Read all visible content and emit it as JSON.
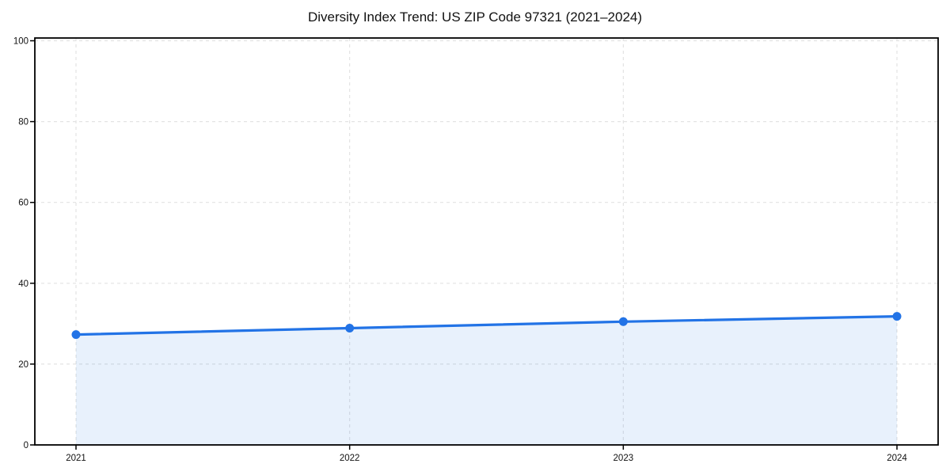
{
  "figure": {
    "background": "#ffffff"
  },
  "chart_data": {
    "type": "line",
    "title": "Diversity Index Trend: US ZIP Code 97321 (2021–2024)",
    "x": [
      2021,
      2022,
      2023,
      2024
    ],
    "xtick_labels": [
      "2021",
      "2022",
      "2023",
      "2024"
    ],
    "series": [
      {
        "name": "Diversity Index",
        "values": [
          27.3,
          28.9,
          30.5,
          31.8
        ]
      }
    ],
    "xlabel": "",
    "ylabel": "",
    "ylim": [
      0,
      100
    ],
    "yticks": [
      0,
      20,
      40,
      60,
      80,
      100
    ],
    "grid": true,
    "grid_style": "dashed",
    "legend_position": "none",
    "area_fill": true,
    "markers": true,
    "colors": {
      "line": "#2273e6",
      "marker": "#2273e6",
      "area_fill": "rgba(34,115,230,0.10)",
      "grid": "#e3e3e3",
      "axis": "#000000",
      "tick_text": "#111111",
      "title_text": "#111111"
    }
  }
}
